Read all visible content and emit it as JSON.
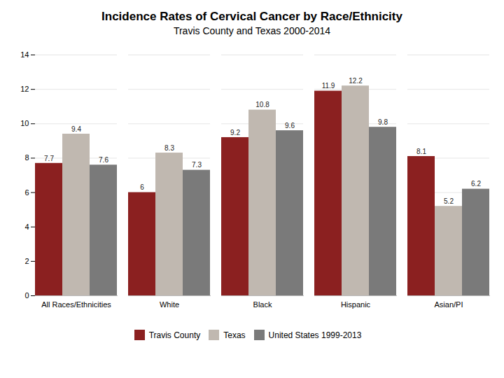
{
  "chart_data": {
    "type": "bar",
    "title": "Incidence Rates of Cervical Cancer by Race/Ethnicity",
    "subtitle": "Travis County and Texas 2000-2014",
    "categories": [
      "All Races/Ethnicities",
      "White",
      "Black",
      "Hispanic",
      "Asian/PI"
    ],
    "series": [
      {
        "name": "Travis County",
        "color": "#8b2020",
        "values": [
          7.7,
          6,
          9.2,
          11.9,
          8.1
        ]
      },
      {
        "name": "Texas",
        "color": "#c0b8b0",
        "values": [
          9.4,
          8.3,
          10.8,
          12.2,
          5.2
        ]
      },
      {
        "name": "United States 1999-2013",
        "color": "#7a7a7a",
        "values": [
          7.6,
          7.3,
          9.6,
          9.8,
          6.2
        ]
      }
    ],
    "ylim": [
      0,
      14
    ],
    "yticks": [
      0,
      2,
      4,
      6,
      8,
      10,
      12,
      14
    ],
    "grid": true,
    "data_labels": true,
    "legend": "bottom"
  }
}
